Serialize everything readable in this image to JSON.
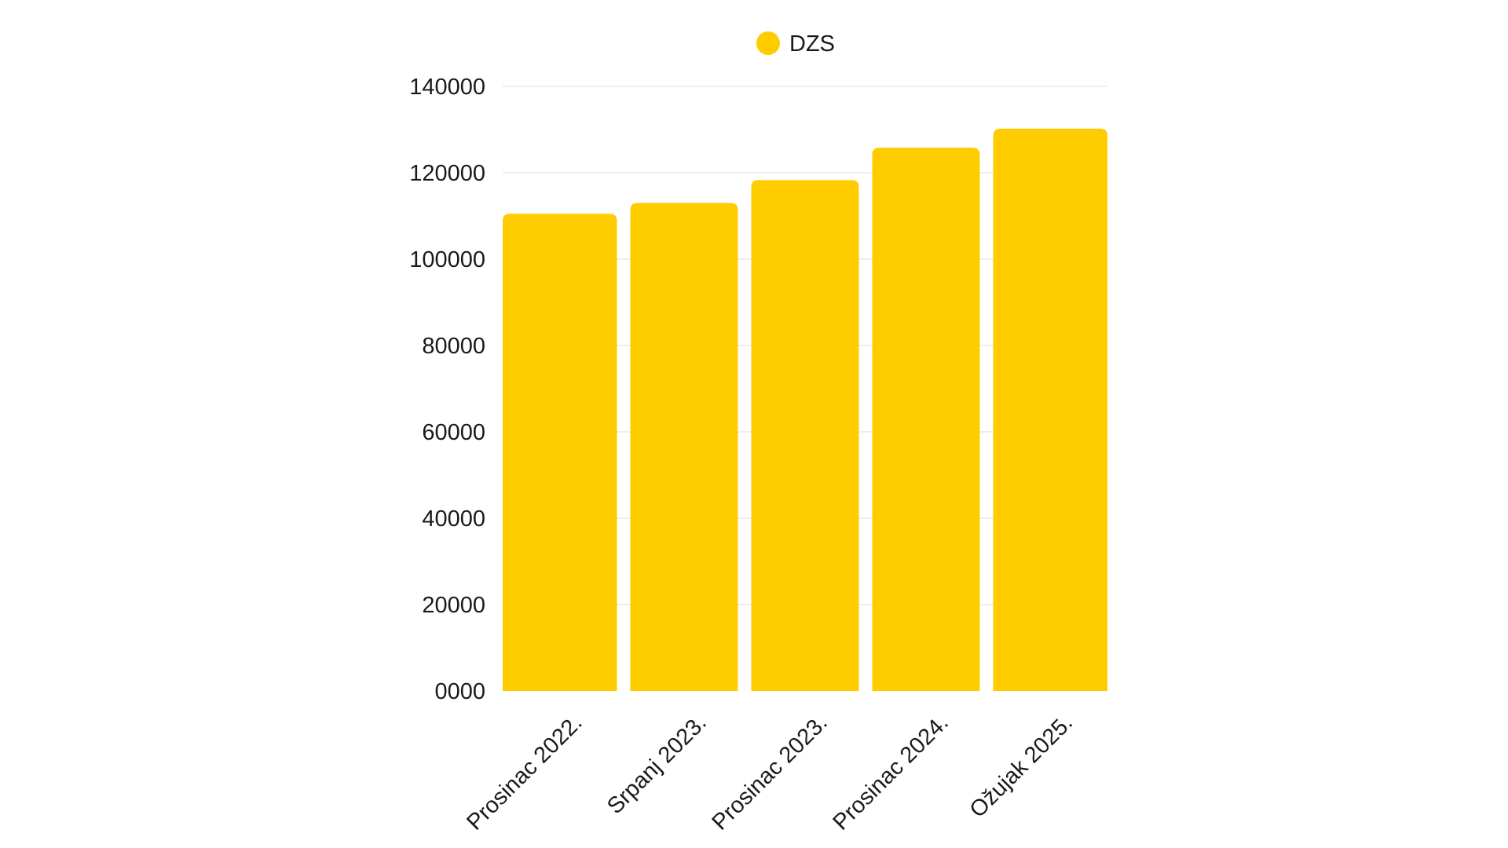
{
  "chart_data": {
    "type": "bar",
    "categories": [
      "Prosinac 2022.",
      "Srpanj 2023.",
      "Prosinac 2023.",
      "Prosinac 2024.",
      "Ožujak 2025."
    ],
    "series": [
      {
        "name": "DZS",
        "values": [
          110500,
          113000,
          118300,
          125800,
          130200
        ],
        "color": "#FFCC00"
      }
    ],
    "yticks": [
      "0000",
      "20000",
      "40000",
      "60000",
      "80000",
      "100000",
      "120000",
      "140000"
    ],
    "ylim": [
      0,
      140000
    ],
    "grid": true,
    "legend_position": "top-center",
    "xlabel_rotation_deg": -45,
    "colors": {
      "bar": "#FFCC00",
      "grid": "#dddddd",
      "text": "#1a1a1a"
    }
  }
}
